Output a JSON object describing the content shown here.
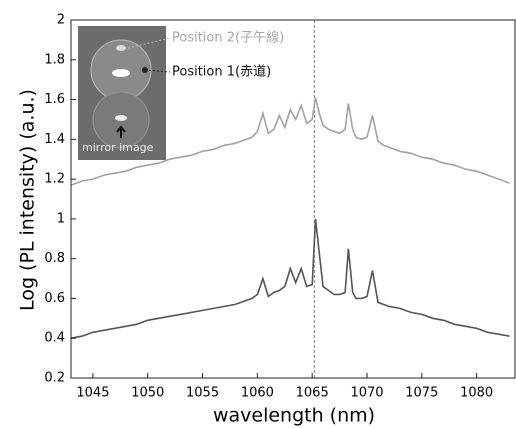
{
  "chart_data": {
    "type": "line",
    "xlabel": "wavelength (nm)",
    "ylabel": "Log (PL intensity) (a.u.)",
    "annotations": [
      "Position 2(子午線)",
      "Position 1(赤道)",
      "mirror image"
    ],
    "vline": 1065.2,
    "xlim": [
      1043,
      1083.5
    ],
    "ylim": [
      0.2,
      2
    ],
    "xticks": [
      1045,
      1050,
      1055,
      1060,
      1065,
      1070,
      1075,
      1080
    ],
    "yticks": [
      0.2,
      0.4,
      0.6,
      0.8,
      1,
      1.2,
      1.4,
      1.6,
      1.8,
      2
    ],
    "x": [
      1043,
      1044,
      1045,
      1046,
      1047,
      1048,
      1049,
      1050,
      1051,
      1052,
      1053,
      1054,
      1055,
      1056,
      1057,
      1058,
      1059,
      1059.5,
      1060,
      1060.5,
      1061,
      1061.5,
      1062,
      1062.5,
      1063,
      1063.5,
      1064,
      1064.5,
      1065,
      1065.3,
      1065.7,
      1066,
      1066.5,
      1067,
      1067.5,
      1068,
      1068.3,
      1068.7,
      1069,
      1069.5,
      1070,
      1070.5,
      1071,
      1071.5,
      1072,
      1073,
      1074,
      1075,
      1076,
      1077,
      1078,
      1079,
      1080,
      1081,
      1082,
      1083
    ],
    "series": [
      {
        "color": "#a3a3a3",
        "values": [
          1.17,
          1.19,
          1.2,
          1.22,
          1.23,
          1.24,
          1.26,
          1.27,
          1.28,
          1.3,
          1.31,
          1.32,
          1.34,
          1.35,
          1.37,
          1.38,
          1.4,
          1.41,
          1.44,
          1.53,
          1.43,
          1.45,
          1.52,
          1.46,
          1.55,
          1.5,
          1.57,
          1.48,
          1.5,
          1.61,
          1.52,
          1.47,
          1.45,
          1.44,
          1.43,
          1.45,
          1.58,
          1.45,
          1.41,
          1.4,
          1.41,
          1.52,
          1.39,
          1.37,
          1.36,
          1.34,
          1.33,
          1.31,
          1.3,
          1.28,
          1.27,
          1.25,
          1.24,
          1.22,
          1.2,
          1.18
        ]
      },
      {
        "color": "#555555",
        "values": [
          0.4,
          0.41,
          0.43,
          0.44,
          0.45,
          0.46,
          0.47,
          0.49,
          0.5,
          0.51,
          0.52,
          0.53,
          0.54,
          0.55,
          0.56,
          0.57,
          0.59,
          0.6,
          0.62,
          0.7,
          0.61,
          0.63,
          0.64,
          0.66,
          0.75,
          0.68,
          0.75,
          0.66,
          0.67,
          1.0,
          0.8,
          0.66,
          0.64,
          0.62,
          0.62,
          0.63,
          0.85,
          0.63,
          0.6,
          0.6,
          0.61,
          0.74,
          0.58,
          0.57,
          0.56,
          0.55,
          0.53,
          0.52,
          0.5,
          0.49,
          0.47,
          0.46,
          0.45,
          0.43,
          0.42,
          0.41
        ]
      }
    ]
  }
}
